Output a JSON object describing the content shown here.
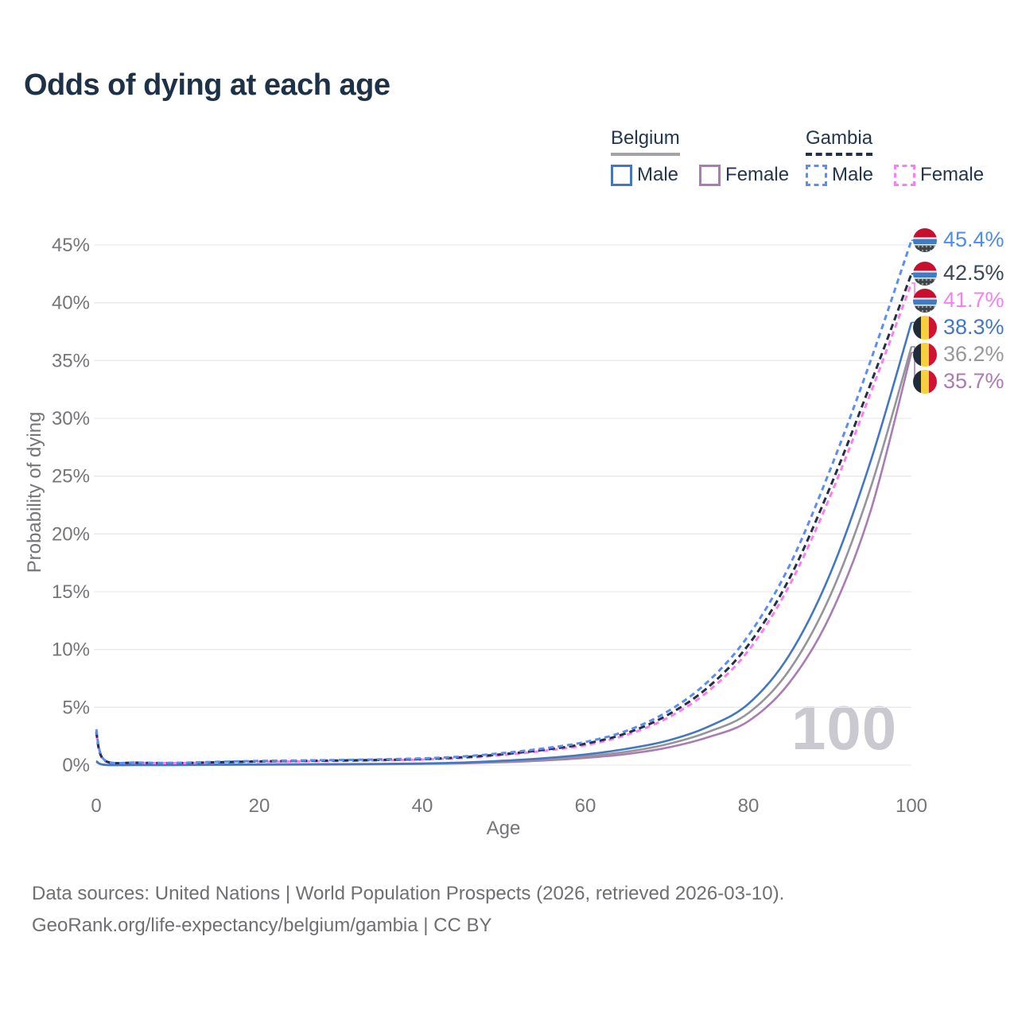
{
  "title": "Odds of dying at each age",
  "legend": {
    "groups": [
      {
        "country": "Belgium",
        "underline": {
          "style": "solid",
          "color": "#a3a3a8"
        },
        "items": [
          {
            "label": "Male",
            "color": "#4377c4",
            "style": "solid"
          },
          {
            "label": "Female",
            "color": "#a97cb4",
            "style": "solid"
          }
        ]
      },
      {
        "country": "Gambia",
        "underline": {
          "style": "dashed",
          "color": "#22304a"
        },
        "items": [
          {
            "label": "Male",
            "color": "#5b8df2",
            "style": "dashed"
          },
          {
            "label": "Female",
            "color": "#fb7ef0",
            "style": "dashed"
          }
        ]
      }
    ]
  },
  "axes": {
    "x_label": "Age",
    "y_label": "Probability of dying",
    "x_ticks": [
      0,
      20,
      40,
      60,
      80,
      100
    ],
    "y_ticks": [
      {
        "value": 0,
        "label": "0%"
      },
      {
        "value": 5,
        "label": "5%"
      },
      {
        "value": 10,
        "label": "10%"
      },
      {
        "value": 15,
        "label": "15%"
      },
      {
        "value": 20,
        "label": "20%"
      },
      {
        "value": 25,
        "label": "25%"
      },
      {
        "value": 30,
        "label": "30%"
      },
      {
        "value": 35,
        "label": "35%"
      },
      {
        "value": 40,
        "label": "40%"
      },
      {
        "value": 45,
        "label": "45%"
      }
    ]
  },
  "watermark": "100",
  "chart_data": {
    "type": "line",
    "title": "Odds of dying at each age",
    "xlabel": "Age",
    "ylabel": "Probability of dying",
    "x_range": [
      0,
      100
    ],
    "y_range_pct": [
      0,
      45
    ],
    "grid": true,
    "ages": [
      0,
      1,
      5,
      10,
      15,
      20,
      25,
      30,
      35,
      40,
      45,
      50,
      55,
      60,
      65,
      70,
      75,
      80,
      85,
      90,
      95,
      100
    ],
    "series": [
      {
        "name": "Gambia Male",
        "country": "Gambia",
        "sex": "male",
        "color": "#5b8df2",
        "dash": "7 5",
        "width": 3,
        "values_pct": [
          3.1,
          0.45,
          0.22,
          0.2,
          0.28,
          0.36,
          0.4,
          0.44,
          0.5,
          0.58,
          0.75,
          1.05,
          1.45,
          2.0,
          2.95,
          4.6,
          7.2,
          11.2,
          17.2,
          25.5,
          35.0,
          45.4
        ],
        "end_label": {
          "text": "45.4%",
          "value": 45.4,
          "color": "#4f8bf0",
          "flag": "gambia"
        }
      },
      {
        "name": "Gambia Both sexes",
        "country": "Gambia",
        "sex": "both",
        "color": "#232f45",
        "dash": "8 5",
        "width": 3,
        "values_pct": [
          2.9,
          0.42,
          0.21,
          0.18,
          0.25,
          0.32,
          0.36,
          0.4,
          0.45,
          0.52,
          0.68,
          0.95,
          1.33,
          1.85,
          2.75,
          4.3,
          6.7,
          10.4,
          16.1,
          24.0,
          33.0,
          42.5
        ],
        "end_label": {
          "text": "42.5%",
          "value": 42.5,
          "color": "#3c4758",
          "flag": "gambia"
        }
      },
      {
        "name": "Gambia Female",
        "country": "Gambia",
        "sex": "female",
        "color": "#fb7ef0",
        "dash": "7 5",
        "width": 3,
        "values_pct": [
          2.7,
          0.4,
          0.2,
          0.17,
          0.22,
          0.28,
          0.32,
          0.36,
          0.41,
          0.48,
          0.62,
          0.88,
          1.24,
          1.72,
          2.6,
          4.05,
          6.35,
          9.9,
          15.5,
          23.2,
          32.2,
          41.7
        ],
        "end_label": {
          "text": "41.7%",
          "value": 41.7,
          "color": "#f97eef",
          "flag": "gambia"
        }
      },
      {
        "name": "Belgium Male",
        "country": "Belgium",
        "sex": "male",
        "color": "#4377c4",
        "dash": null,
        "width": 2.6,
        "values_pct": [
          0.35,
          0.03,
          0.01,
          0.01,
          0.04,
          0.06,
          0.07,
          0.08,
          0.1,
          0.14,
          0.22,
          0.38,
          0.6,
          0.92,
          1.4,
          2.1,
          3.3,
          5.3,
          9.5,
          16.5,
          26.3,
          38.3
        ],
        "end_label": {
          "text": "38.3%",
          "value": 38.3,
          "color": "#4377c4",
          "flag": "belgium"
        }
      },
      {
        "name": "Belgium Both sexes",
        "country": "Belgium",
        "sex": "both",
        "color": "#949499",
        "dash": null,
        "width": 2.6,
        "values_pct": [
          0.33,
          0.03,
          0.01,
          0.01,
          0.03,
          0.05,
          0.06,
          0.07,
          0.09,
          0.12,
          0.18,
          0.31,
          0.5,
          0.76,
          1.15,
          1.8,
          2.85,
          4.5,
          8.2,
          14.6,
          24.0,
          36.2
        ],
        "end_label": {
          "text": "36.2%",
          "value": 36.2,
          "color": "#97979c",
          "flag": "belgium"
        }
      },
      {
        "name": "Belgium Female",
        "country": "Belgium",
        "sex": "female",
        "color": "#a97cb4",
        "dash": null,
        "width": 2.6,
        "values_pct": [
          0.3,
          0.02,
          0.01,
          0.01,
          0.02,
          0.03,
          0.04,
          0.05,
          0.07,
          0.1,
          0.15,
          0.25,
          0.4,
          0.62,
          0.95,
          1.5,
          2.4,
          3.8,
          7.1,
          12.9,
          22.0,
          35.7
        ],
        "end_label": {
          "text": "35.7%",
          "value": 35.7,
          "color": "#a97cb4",
          "flag": "belgium"
        }
      }
    ]
  },
  "footer": {
    "line1": "Data sources: United Nations | World Population Prospects (2026, retrieved 2026-03-10).",
    "line2": "GeoRank.org/life-expectancy/belgium/gambia | CC BY"
  }
}
